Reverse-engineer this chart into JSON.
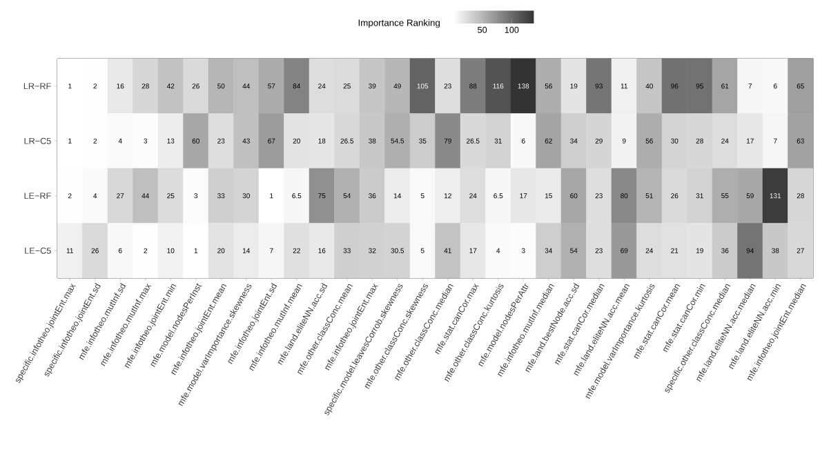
{
  "chart_data": {
    "type": "heatmap",
    "legend_title": "Importance Ranking",
    "categories": [
      "specific.infotheo.jointEnt.max",
      "specific.infotheo.jointEnt.sd",
      "mfe.infotheo.mutInf.sd",
      "mfe.infotheo.mutInf.max",
      "mfe.infotheo.jointEnt.min",
      "mfe.model.nodesPerInst",
      "mfe.infotheo.jointEnt.mean",
      "mfe.model.varImportance.skewness",
      "mfe.infotheo.jointEnt.sd",
      "mfe.infotheo.mutInf.mean",
      "mfe.land.eliteNN.acc.sd",
      "mfe.other.classConc.mean",
      "mfe.infotheo.jointEnt.max",
      "specific.model.leavesCorrob.skewness",
      "mfe.other.classConc.skewness",
      "mfe.other.classConc.median",
      "mfe.stat.canCor.max",
      "mfe.other.classConc.kurtosis",
      "mfe.model.nodesPerAttr",
      "mfe.infotheo.mutInf.median",
      "mfe.land.bestNode.acc.sd",
      "mfe.stat.canCor.median",
      "mfe.land.eliteNN.acc.mean",
      "mfe.model.varImportance.kurtosis",
      "mfe.stat.canCor.mean",
      "mfe.stat.canCor.min",
      "specific.other.classConc.median",
      "mfe.land.eliteNN.acc.median",
      "mfe.land.eliteNN.acc.min",
      "mfe.infotheo.jointEnt.median"
    ],
    "y_categories": [
      "LR−RF",
      "LR−C5",
      "LE−RF",
      "LE−C5"
    ],
    "cells": [
      [
        1,
        2,
        16,
        28,
        42,
        26,
        50,
        44,
        57,
        84,
        24,
        25,
        39,
        49,
        105,
        23,
        88,
        116,
        138,
        56,
        19,
        93,
        11,
        40,
        96,
        95,
        61,
        7,
        6,
        65
      ],
      [
        1,
        2,
        4,
        3,
        13,
        60,
        23,
        43,
        67,
        20,
        18,
        26.5,
        38,
        54.5,
        35,
        79,
        26.5,
        31,
        6,
        62,
        34,
        29,
        9,
        56,
        30,
        28,
        24,
        17,
        7,
        63
      ],
      [
        2,
        4,
        27,
        44,
        25,
        3,
        33,
        30,
        1,
        6.5,
        75,
        54,
        36,
        14,
        5,
        12,
        24,
        6.5,
        17,
        15,
        60,
        23,
        80,
        51,
        26,
        31,
        55,
        59,
        131,
        28
      ],
      [
        11,
        26,
        6,
        2,
        10,
        1,
        20,
        14,
        7,
        22,
        16,
        33,
        32,
        30.5,
        5,
        41,
        17,
        4,
        3,
        34,
        54,
        23,
        69,
        24,
        21,
        19,
        36,
        94,
        38,
        27
      ]
    ],
    "clim": [
      1,
      138
    ],
    "cticks": [
      50,
      100
    ],
    "data_labels": true
  }
}
